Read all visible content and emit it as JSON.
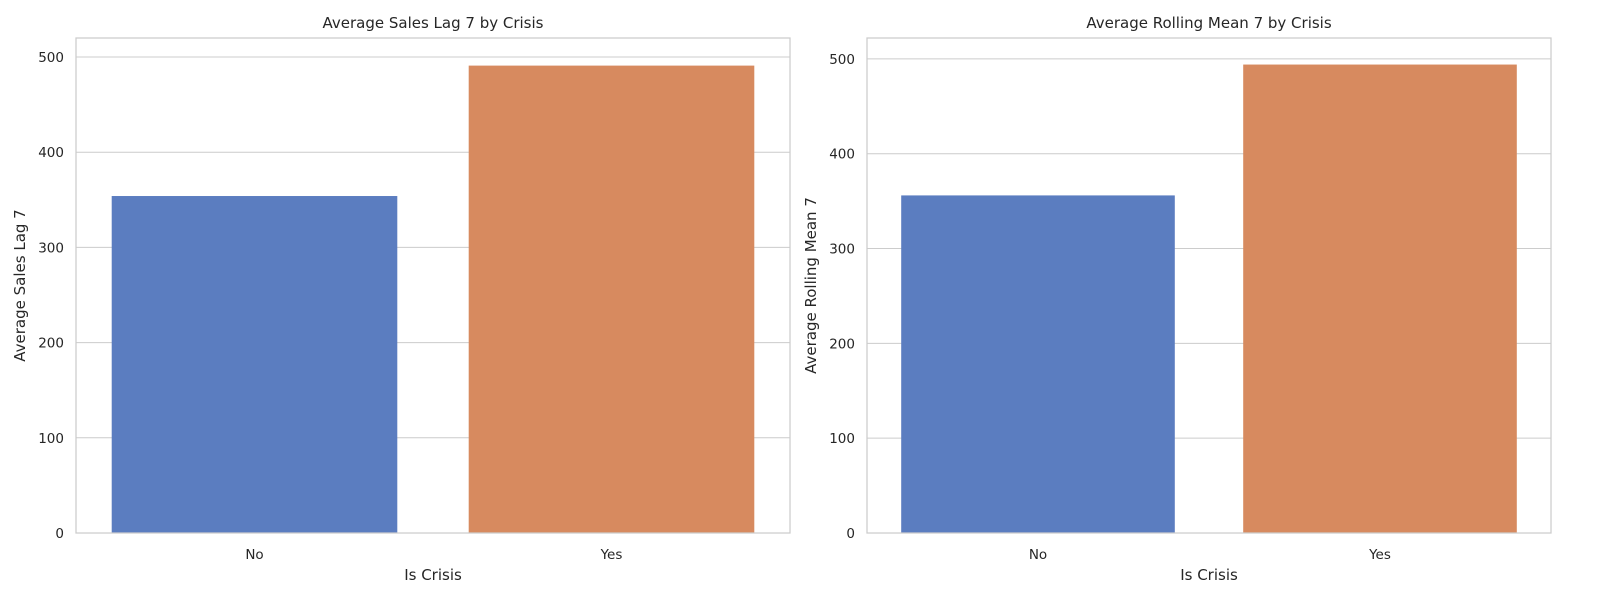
{
  "colors": {
    "grid": "#cccccc",
    "frame": "#cccccc",
    "text": "#262626"
  },
  "chart_data": [
    {
      "type": "bar",
      "title": "Average Sales Lag 7 by Crisis",
      "xlabel": "Is Crisis",
      "ylabel": "Average Sales Lag 7",
      "categories": [
        "No",
        "Yes"
      ],
      "values": [
        354,
        491
      ],
      "bar_colors": [
        "#5b7dc0",
        "#d78a5f"
      ],
      "ylim": [
        0,
        520
      ],
      "yticks": [
        0,
        100,
        200,
        300,
        400,
        500
      ],
      "grid": true
    },
    {
      "type": "bar",
      "title": "Average Rolling Mean 7 by Crisis",
      "xlabel": "Is Crisis",
      "ylabel": "Average Rolling Mean 7",
      "categories": [
        "No",
        "Yes"
      ],
      "values": [
        356,
        494
      ],
      "bar_colors": [
        "#5b7dc0",
        "#d78a5f"
      ],
      "ylim": [
        0,
        522
      ],
      "yticks": [
        0,
        100,
        200,
        300,
        400,
        500
      ],
      "grid": true
    }
  ]
}
